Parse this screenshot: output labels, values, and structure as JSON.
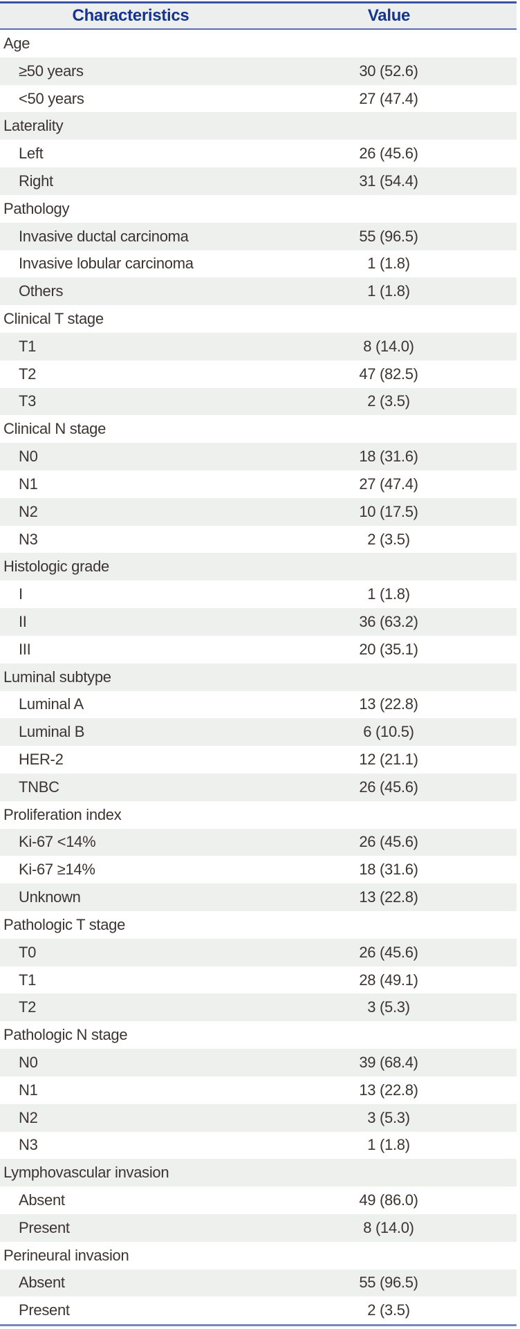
{
  "colors": {
    "header_text": "#16338f",
    "rule_top": "#3a519f",
    "rule_mid": "#5a6cb0",
    "rule_bottom": "#7787bd",
    "zebra_row": "#eef0ee",
    "header_bg": "#ecefee",
    "body_text": "#3b3431"
  },
  "table": {
    "columns": [
      "Characteristics",
      "Value"
    ],
    "rows": [
      {
        "label": "Age",
        "value": "",
        "type": "category"
      },
      {
        "label": "≥50 years",
        "value": "30 (52.6)",
        "type": "item"
      },
      {
        "label": "<50 years",
        "value": "27 (47.4)",
        "type": "item"
      },
      {
        "label": "Laterality",
        "value": "",
        "type": "category"
      },
      {
        "label": "Left",
        "value": "26 (45.6)",
        "type": "item"
      },
      {
        "label": "Right",
        "value": "31 (54.4)",
        "type": "item"
      },
      {
        "label": "Pathology",
        "value": "",
        "type": "category"
      },
      {
        "label": "Invasive ductal carcinoma",
        "value": "55 (96.5)",
        "type": "item"
      },
      {
        "label": "Invasive lobular carcinoma",
        "value": "1 (1.8)",
        "type": "item"
      },
      {
        "label": "Others",
        "value": "1 (1.8)",
        "type": "item"
      },
      {
        "label": "Clinical T stage",
        "value": "",
        "type": "category"
      },
      {
        "label": "T1",
        "value": "8 (14.0)",
        "type": "item"
      },
      {
        "label": "T2",
        "value": "47 (82.5)",
        "type": "item"
      },
      {
        "label": "T3",
        "value": "2 (3.5)",
        "type": "item"
      },
      {
        "label": "Clinical N stage",
        "value": "",
        "type": "category"
      },
      {
        "label": "N0",
        "value": "18 (31.6)",
        "type": "item"
      },
      {
        "label": "N1",
        "value": "27 (47.4)",
        "type": "item"
      },
      {
        "label": "N2",
        "value": "10 (17.5)",
        "type": "item"
      },
      {
        "label": "N3",
        "value": "2 (3.5)",
        "type": "item"
      },
      {
        "label": "Histologic grade",
        "value": "",
        "type": "category"
      },
      {
        "label": "I",
        "value": "1 (1.8)",
        "type": "item"
      },
      {
        "label": "II",
        "value": "36 (63.2)",
        "type": "item"
      },
      {
        "label": "III",
        "value": "20 (35.1)",
        "type": "item"
      },
      {
        "label": "Luminal subtype",
        "value": "",
        "type": "category"
      },
      {
        "label": "Luminal A",
        "value": "13 (22.8)",
        "type": "item"
      },
      {
        "label": "Luminal B",
        "value": "6 (10.5)",
        "type": "item"
      },
      {
        "label": "HER-2",
        "value": "12 (21.1)",
        "type": "item"
      },
      {
        "label": "TNBC",
        "value": "26 (45.6)",
        "type": "item"
      },
      {
        "label": "Proliferation index",
        "value": "",
        "type": "category"
      },
      {
        "label": "Ki-67 <14%",
        "value": "26 (45.6)",
        "type": "item"
      },
      {
        "label": "Ki-67 ≥14%",
        "value": "18 (31.6)",
        "type": "item"
      },
      {
        "label": "Unknown",
        "value": "13 (22.8)",
        "type": "item"
      },
      {
        "label": "Pathologic T stage",
        "value": "",
        "type": "category"
      },
      {
        "label": "T0",
        "value": "26 (45.6)",
        "type": "item"
      },
      {
        "label": "T1",
        "value": "28 (49.1)",
        "type": "item"
      },
      {
        "label": "T2",
        "value": "3 (5.3)",
        "type": "item"
      },
      {
        "label": "Pathologic N stage",
        "value": "",
        "type": "category"
      },
      {
        "label": "N0",
        "value": "39 (68.4)",
        "type": "item"
      },
      {
        "label": "N1",
        "value": "13 (22.8)",
        "type": "item"
      },
      {
        "label": "N2",
        "value": "3 (5.3)",
        "type": "item"
      },
      {
        "label": "N3",
        "value": "1 (1.8)",
        "type": "item"
      },
      {
        "label": "Lymphovascular invasion",
        "value": "",
        "type": "category"
      },
      {
        "label": "Absent",
        "value": "49 (86.0)",
        "type": "item"
      },
      {
        "label": "Present",
        "value": "8 (14.0)",
        "type": "item"
      },
      {
        "label": "Perineural invasion",
        "value": "",
        "type": "category"
      },
      {
        "label": "Absent",
        "value": "55 (96.5)",
        "type": "item"
      },
      {
        "label": "Present",
        "value": "2 (3.5)",
        "type": "item"
      }
    ]
  }
}
